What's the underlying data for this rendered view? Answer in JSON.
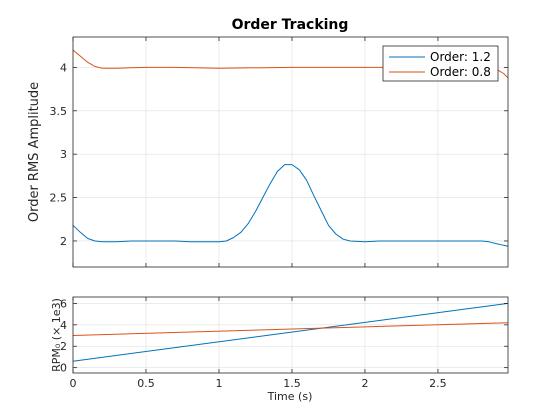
{
  "colors": {
    "series1": "#0072BD",
    "series2": "#D95319",
    "axis": "#262626",
    "grid": "#DFDFDF"
  },
  "chart_data": [
    {
      "type": "line",
      "title": "Order Tracking",
      "xlabel": "",
      "ylabel": "Order RMS Amplitude",
      "xlim": [
        0,
        2.98
      ],
      "ylim": [
        1.7,
        4.35
      ],
      "xticks": [
        0,
        0.5,
        1,
        1.5,
        2,
        2.5
      ],
      "xticklabels_visible": false,
      "yticks": [
        2,
        2.5,
        3,
        3.5,
        4
      ],
      "yticklabels": [
        "2",
        "2.5",
        "3",
        "3.5",
        "4"
      ],
      "grid": true,
      "legend": "top-right",
      "series": [
        {
          "name": "Order: 1.2",
          "color": "#0072BD",
          "x": [
            0,
            0.05,
            0.1,
            0.15,
            0.2,
            0.3,
            0.4,
            0.5,
            0.6,
            0.7,
            0.8,
            0.9,
            1.0,
            1.05,
            1.1,
            1.15,
            1.2,
            1.25,
            1.3,
            1.35,
            1.4,
            1.45,
            1.5,
            1.55,
            1.6,
            1.65,
            1.7,
            1.75,
            1.8,
            1.85,
            1.9,
            2.0,
            2.1,
            2.2,
            2.3,
            2.4,
            2.5,
            2.6,
            2.7,
            2.8,
            2.85,
            2.9,
            2.95,
            2.98
          ],
          "y": [
            2.18,
            2.1,
            2.03,
            2.0,
            1.99,
            1.99,
            2.0,
            2.0,
            2.0,
            2.0,
            1.99,
            1.99,
            1.99,
            2.0,
            2.04,
            2.1,
            2.2,
            2.34,
            2.5,
            2.66,
            2.8,
            2.88,
            2.88,
            2.82,
            2.7,
            2.52,
            2.35,
            2.18,
            2.08,
            2.02,
            2.0,
            1.99,
            2.0,
            2.0,
            2.0,
            2.0,
            2.0,
            2.0,
            2.0,
            2.0,
            1.99,
            1.97,
            1.95,
            1.94
          ]
        },
        {
          "name": "Order: 0.8",
          "color": "#D95319",
          "x": [
            0,
            0.05,
            0.1,
            0.15,
            0.2,
            0.3,
            0.5,
            0.7,
            1.0,
            1.5,
            2.0,
            2.5,
            2.8,
            2.9,
            2.95,
            2.98
          ],
          "y": [
            4.2,
            4.13,
            4.06,
            4.01,
            3.99,
            3.99,
            4.0,
            4.0,
            3.99,
            4.0,
            4.0,
            4.0,
            4.0,
            3.98,
            3.93,
            3.88
          ]
        }
      ]
    },
    {
      "type": "line",
      "title": "",
      "xlabel": "Time (s)",
      "ylabel": "RPM₀ (× 1e3)",
      "xlim": [
        0,
        2.98
      ],
      "ylim": [
        -0.5,
        6.6
      ],
      "xticks": [
        0,
        0.5,
        1,
        1.5,
        2,
        2.5
      ],
      "xticklabels": [
        "0",
        "0.5",
        "1",
        "1.5",
        "2",
        "2.5"
      ],
      "yticks": [
        0,
        2,
        4,
        6
      ],
      "yticklabels": [
        "0",
        "2",
        "4",
        "6"
      ],
      "grid": true,
      "series": [
        {
          "color": "#0072BD",
          "x": [
            0,
            2.98
          ],
          "y": [
            0.6,
            6.0
          ]
        },
        {
          "color": "#D95319",
          "x": [
            0,
            2.98
          ],
          "y": [
            3.0,
            4.2
          ]
        }
      ]
    }
  ]
}
